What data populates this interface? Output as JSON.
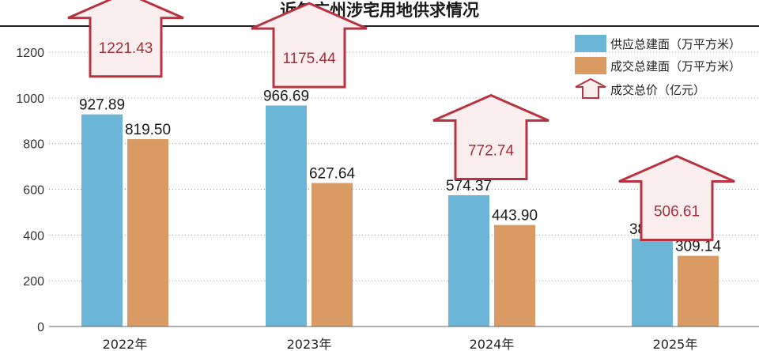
{
  "chart_data": {
    "type": "bar",
    "title": "近年广州涉宅用地供求情况",
    "categories": [
      "2022年",
      "2023年",
      "2024年",
      "2025年"
    ],
    "ylim": [
      0,
      1200
    ],
    "yticks": [
      "0",
      "200",
      "400",
      "600",
      "800",
      "1000",
      "1200"
    ],
    "grid": true,
    "legend_position": "top-right",
    "series": [
      {
        "name": "供应总建面（万平方米）",
        "values": [
          927.89,
          966.69,
          574.37,
          383.55
        ],
        "labels": [
          "927.89",
          "966.69",
          "574.37",
          "383.55"
        ],
        "color": "#6bb6d6"
      },
      {
        "name": "成交总建面（万平方米）",
        "values": [
          819.5,
          627.64,
          443.9,
          309.14
        ],
        "labels": [
          "819.50",
          "627.64",
          "443.90",
          "309.14"
        ],
        "color": "#d99b63"
      }
    ],
    "price_series": {
      "name": "成交总价（亿元）",
      "values": [
        1221.43,
        1175.44,
        772.74,
        506.61
      ],
      "labels": [
        "1221.43",
        "1175.44",
        "772.74",
        "506.61"
      ],
      "stroke": "#b8333f",
      "fill": "#fbeeee"
    }
  }
}
